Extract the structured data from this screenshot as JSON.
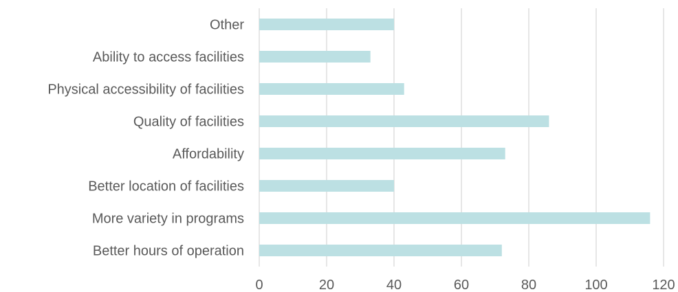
{
  "chart_data": {
    "type": "bar",
    "orientation": "horizontal",
    "categories": [
      "Better hours of operation",
      "More variety in programs",
      "Better location of facilities",
      "Affordability",
      "Quality of facilities",
      "Physical accessibility of facilities",
      "Ability to access facilities",
      "Other"
    ],
    "values": [
      72,
      116,
      40,
      73,
      86,
      43,
      33,
      40
    ],
    "xlim": [
      0,
      120
    ],
    "xticks": [
      0,
      20,
      40,
      60,
      80,
      100,
      120
    ],
    "grid": "vertical",
    "legend": "none",
    "colors": {
      "bar": "#BCE0E3",
      "grid": "#D9D9D9",
      "text": "#595959"
    }
  }
}
